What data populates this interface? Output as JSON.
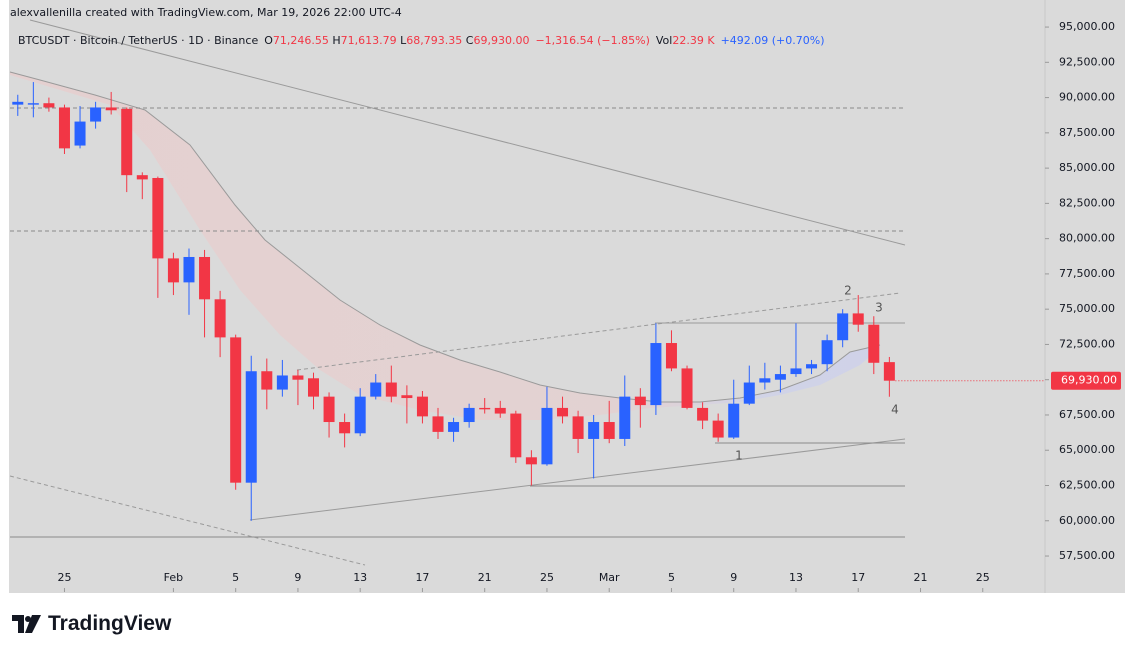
{
  "header": {
    "attribution": "alexvallenilla created with TradingView.com, Mar 19, 2026 22:00 UTC-4",
    "symbol": "BTCUSDT · Bitcoin / TetherUS · 1D · Binance",
    "ohlc": [
      {
        "key": "O",
        "text": "71,246.55"
      },
      {
        "key": "H",
        "text": "71,613.79"
      },
      {
        "key": "L",
        "text": "68,793.35"
      },
      {
        "key": "C",
        "text": "69,930.00"
      }
    ],
    "change": "−1,316.54 (−1.85%)",
    "volume_key": "Vol",
    "volume": "22.39 K",
    "volume_change": "+492.09 (+0.70%)"
  },
  "footer": {
    "logo": "TradingView"
  },
  "chart_data": {
    "type": "candlestick",
    "x": [
      "2026-01-22",
      "2026-01-23",
      "2026-01-24",
      "2026-01-25",
      "2026-01-26",
      "2026-01-27",
      "2026-01-28",
      "2026-01-29",
      "2026-01-30",
      "2026-01-31",
      "2026-02-01",
      "2026-02-02",
      "2026-02-03",
      "2026-02-04",
      "2026-02-05",
      "2026-02-06",
      "2026-02-07",
      "2026-02-08",
      "2026-02-09",
      "2026-02-10",
      "2026-02-11",
      "2026-02-12",
      "2026-02-13",
      "2026-02-14",
      "2026-02-15",
      "2026-02-16",
      "2026-02-17",
      "2026-02-18",
      "2026-02-19",
      "2026-02-20",
      "2026-02-21",
      "2026-02-22",
      "2026-02-23",
      "2026-02-24",
      "2026-02-25",
      "2026-02-26",
      "2026-02-27",
      "2026-02-28",
      "2026-03-01",
      "2026-03-02",
      "2026-03-03",
      "2026-03-04",
      "2026-03-05",
      "2026-03-06",
      "2026-03-07",
      "2026-03-08",
      "2026-03-09",
      "2026-03-10",
      "2026-03-11",
      "2026-03-12",
      "2026-03-13",
      "2026-03-14",
      "2026-03-15",
      "2026-03-16",
      "2026-03-17",
      "2026-03-18",
      "2026-03-19"
    ],
    "open": [
      89500,
      89500,
      89600,
      89300,
      86600,
      88300,
      89300,
      89200,
      84500,
      84300,
      78600,
      76900,
      78700,
      75700,
      73000,
      62700,
      70600,
      69300,
      70300,
      70100,
      68800,
      67000,
      66200,
      68800,
      69800,
      68900,
      68800,
      67400,
      66300,
      67000,
      68000,
      68000,
      67600,
      64500,
      64000,
      68000,
      67400,
      65800,
      67000,
      65800,
      68800,
      68200,
      72600,
      70800,
      68000,
      67100,
      65900,
      68300,
      69800,
      70000,
      70400,
      70800,
      71100,
      72800,
      74700,
      73900,
      71246.55
    ],
    "high": [
      90200,
      91100,
      90000,
      89500,
      89400,
      89700,
      90400,
      89300,
      84700,
      84400,
      79000,
      79300,
      79200,
      76300,
      73200,
      71700,
      71500,
      71400,
      70700,
      70500,
      69100,
      67600,
      69400,
      70400,
      71000,
      69600,
      69200,
      68000,
      67300,
      68300,
      68700,
      68500,
      67800,
      65000,
      69500,
      68800,
      67800,
      67500,
      68500,
      70300,
      69400,
      74000,
      73500,
      71000,
      68400,
      67600,
      70000,
      71000,
      71200,
      71000,
      74000,
      71400,
      73200,
      75000,
      76000,
      74500,
      71613.79
    ],
    "low": [
      88700,
      88600,
      89000,
      86000,
      86400,
      87800,
      88800,
      83300,
      82800,
      75800,
      76000,
      74600,
      73000,
      71600,
      62200,
      60000,
      67900,
      68800,
      68200,
      67900,
      65900,
      65200,
      66000,
      68600,
      68400,
      66900,
      66900,
      65800,
      65600,
      66600,
      67600,
      67300,
      64100,
      62500,
      63900,
      66900,
      64800,
      63000,
      65500,
      65300,
      66600,
      67500,
      70600,
      67900,
      66500,
      65600,
      65800,
      68200,
      69300,
      69100,
      70200,
      70400,
      70600,
      72300,
      73400,
      70400,
      68793.35
    ],
    "close": [
      89700,
      89600,
      89300,
      86400,
      88300,
      89300,
      89100,
      84500,
      84200,
      78600,
      76900,
      78700,
      75700,
      73000,
      62700,
      70600,
      69300,
      70300,
      70000,
      68800,
      67000,
      66200,
      68800,
      69800,
      68800,
      68700,
      67400,
      66300,
      67000,
      68000,
      67900,
      67600,
      64500,
      64000,
      68000,
      67400,
      65800,
      67000,
      65800,
      68800,
      68200,
      72600,
      70800,
      68000,
      67100,
      65900,
      68300,
      69800,
      70100,
      70400,
      70800,
      71100,
      72800,
      74700,
      73900,
      71200,
      69930
    ],
    "up_color": "#2962ff",
    "down_color": "#f23645",
    "xlim": [
      "2026-01-21T12:00",
      "2026-03-29T00:00"
    ],
    "xticks": [
      {
        "value": "2026-01-25",
        "label": "25"
      },
      {
        "value": "2026-02-01",
        "label": "Feb"
      },
      {
        "value": "2026-02-05",
        "label": "5"
      },
      {
        "value": "2026-02-09",
        "label": "9"
      },
      {
        "value": "2026-02-13",
        "label": "13"
      },
      {
        "value": "2026-02-17",
        "label": "17"
      },
      {
        "value": "2026-02-21",
        "label": "21"
      },
      {
        "value": "2026-02-25",
        "label": "25"
      },
      {
        "value": "2026-03-01",
        "label": "Mar"
      },
      {
        "value": "2026-03-05",
        "label": "5"
      },
      {
        "value": "2026-03-09",
        "label": "9"
      },
      {
        "value": "2026-03-13",
        "label": "13"
      },
      {
        "value": "2026-03-17",
        "label": "17"
      },
      {
        "value": "2026-03-21",
        "label": "21"
      },
      {
        "value": "2026-03-25",
        "label": "25"
      }
    ],
    "ylim": [
      54950,
      95500
    ],
    "yticks": [
      {
        "value": 57500,
        "label": "57,500.00"
      },
      {
        "value": 60000,
        "label": "60,000.00"
      },
      {
        "value": 62500,
        "label": "62,500.00"
      },
      {
        "value": 65000,
        "label": "65,000.00"
      },
      {
        "value": 67500,
        "label": "67,500.00"
      },
      {
        "value": 70000,
        "label": "70,000.00"
      },
      {
        "value": 72500,
        "label": "72,500.00"
      },
      {
        "value": 75000,
        "label": "75,000.00"
      },
      {
        "value": 77500,
        "label": "77,500.00"
      },
      {
        "value": 80000,
        "label": "80,000.00"
      },
      {
        "value": 82500,
        "label": "82,500.00"
      },
      {
        "value": 85000,
        "label": "85,000.00"
      },
      {
        "value": 87500,
        "label": "87,500.00"
      },
      {
        "value": 90000,
        "label": "90,000.00"
      },
      {
        "value": 92500,
        "label": "92,500.00"
      },
      {
        "value": 95000,
        "label": "95,000.00"
      }
    ],
    "last_price": {
      "value": 69930,
      "label": "69,930.00"
    },
    "annotations": [
      "1",
      "2",
      "3",
      "4"
    ]
  }
}
